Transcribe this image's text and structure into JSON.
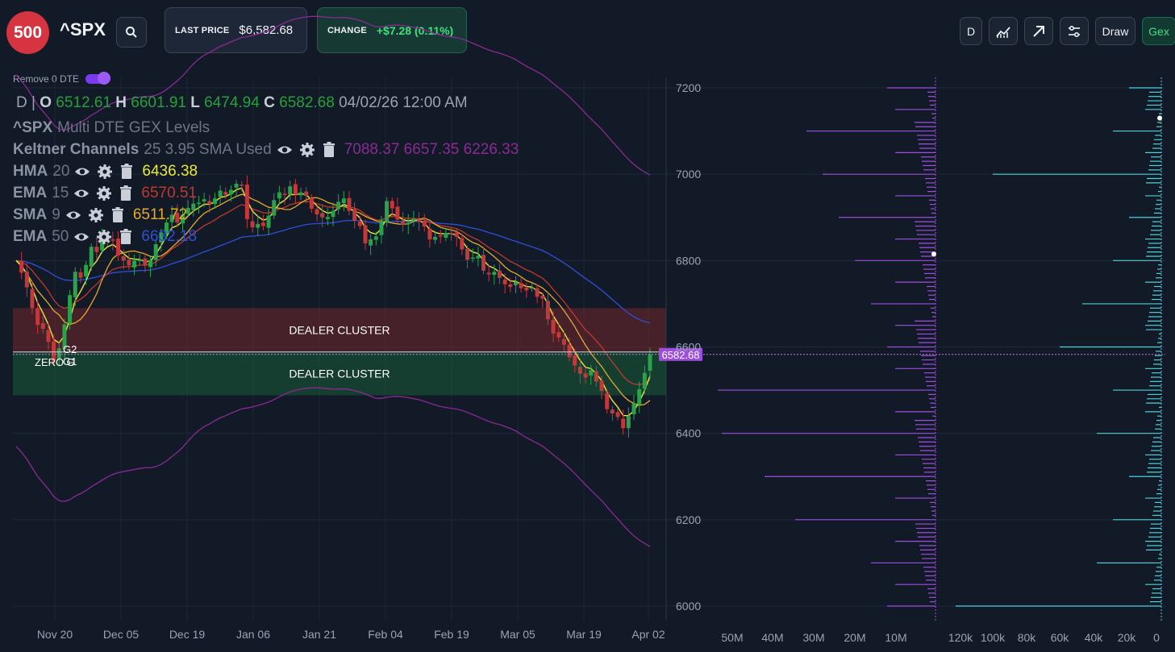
{
  "header": {
    "logo_text": "500",
    "ticker": "^SPX",
    "last_price_label": "LAST PRICE",
    "last_price": "$6,582.68",
    "change_label": "CHANGE",
    "change_value": "+$7.28 (0.11%)"
  },
  "toolbar": {
    "interval": "D",
    "draw_label": "Draw",
    "gex_label": "Gex"
  },
  "toggle": {
    "label": "Remove 0 DTE",
    "on": true
  },
  "ohlc": {
    "interval": "D",
    "o_label": "O",
    "open": "6512.61",
    "h_label": "H",
    "high": "6601.91",
    "l_label": "L",
    "low": "6474.94",
    "c_label": "C",
    "close": "6582.68",
    "datetime": "04/02/26 12:00 AM"
  },
  "indicators": {
    "gex_title_sym": "^SPX",
    "gex_title_rest": "Multi DTE GEX Levels",
    "keltner": {
      "name": "Keltner Channels",
      "params": "25 3.95 SMA Used",
      "values": "7088.37 6657.35 6226.33",
      "color": "#8a2a92"
    },
    "hma": {
      "name": "HMA",
      "params": "20",
      "value": "6436.38",
      "color": "#e8e83a"
    },
    "ema15": {
      "name": "EMA",
      "params": "15",
      "value": "6570.51",
      "color": "#c0392b"
    },
    "sma9": {
      "name": "SMA",
      "params": "9",
      "value": "6511.72",
      "color": "#e6a92a"
    },
    "ema50": {
      "name": "EMA",
      "params": "50",
      "value": "6632.18",
      "color": "#2f4fd6"
    }
  },
  "chart_data": {
    "type": "candlestick",
    "x_ticks": [
      "Nov 20",
      "Dec 05",
      "Dec 19",
      "Jan 06",
      "Jan 21",
      "Feb 04",
      "Feb 19",
      "Mar 05",
      "Mar 19",
      "Apr 02"
    ],
    "y_ticks": [
      7200,
      7000,
      6800,
      6600,
      6400,
      6200,
      6000
    ],
    "ylim": [
      5970,
      7230
    ],
    "current_price": 6582.68,
    "current_price_label": "6582.68",
    "zones": [
      {
        "label": "DEALER CLUSTER",
        "from": 6588,
        "to": 6690,
        "color": "#8a2a2a"
      },
      {
        "label": "DEALER CLUSTER",
        "from": 6488,
        "to": 6588,
        "color": "#1b6a3a"
      }
    ],
    "level_labels": [
      "G2",
      "G1",
      "ZERO G"
    ],
    "series_colors": {
      "up": "#2aa24a",
      "down": "#c2393b",
      "keltner": "#8a2a92",
      "hma": "#e8e83a",
      "ema15": "#c0392b",
      "sma9": "#e6a92a",
      "ema50": "#2f4fd6"
    },
    "closes": [
      6800,
      6772,
      6738,
      6690,
      6651,
      6642,
      6612,
      6566,
      6597,
      6652,
      6720,
      6774,
      6760,
      6790,
      6832,
      6820,
      6854,
      6848,
      6846,
      6812,
      6800,
      6789,
      6800,
      6802,
      6789,
      6801,
      6838,
      6865,
      6888,
      6906,
      6888,
      6906,
      6922,
      6932,
      6934,
      6942,
      6931,
      6944,
      6962,
      6952,
      6964,
      6978,
      6974,
      6896,
      6877,
      6885,
      6880,
      6904,
      6940,
      6958,
      6952,
      6972,
      6953,
      6958,
      6950,
      6920,
      6907,
      6900,
      6901,
      6915,
      6936,
      6944,
      6915,
      6892,
      6880,
      6840,
      6849,
      6856,
      6893,
      6938,
      6921,
      6895,
      6883,
      6888,
      6897,
      6890,
      6879,
      6849,
      6855,
      6857,
      6864,
      6861,
      6855,
      6826,
      6802,
      6807,
      6811,
      6777,
      6768,
      6774,
      6760,
      6745,
      6739,
      6751,
      6736,
      6731,
      6738,
      6716,
      6712,
      6664,
      6631,
      6622,
      6605,
      6576,
      6557,
      6538,
      6529,
      6546,
      6520,
      6498,
      6456,
      6446,
      6438,
      6412,
      6440,
      6470,
      6502,
      6540,
      6582.68
    ],
    "gex_calls": {
      "axis_ticks": [
        "50M",
        "40M",
        "30M",
        "20M",
        "10M"
      ],
      "color": "#9d4edd"
    },
    "gex_puts": {
      "axis_ticks": [
        "120k",
        "100k",
        "80k",
        "60k",
        "40k",
        "20k",
        "0"
      ],
      "color": "#4fd1d9"
    }
  }
}
